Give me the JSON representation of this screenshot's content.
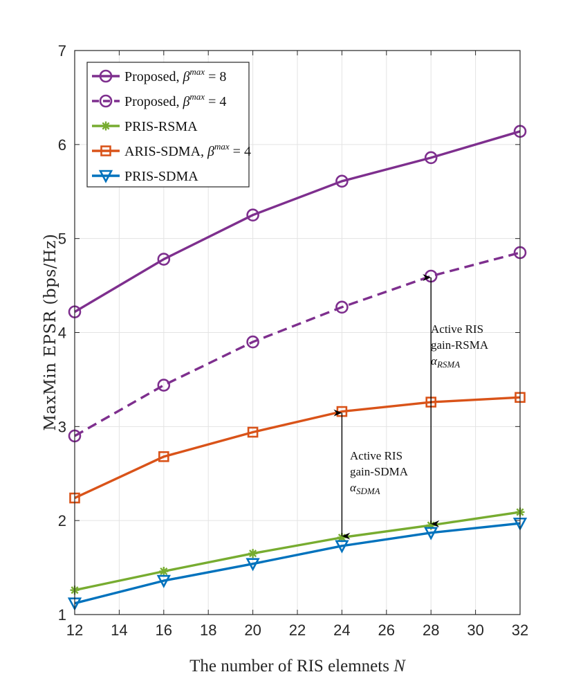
{
  "chart_data": {
    "type": "line",
    "xlabel": "The number of RIS elemnets N",
    "ylabel": "MaxMin EPSR (bps/Hz)",
    "x": [
      12,
      16,
      20,
      24,
      28,
      32
    ],
    "xlim": [
      12,
      32
    ],
    "ylim": [
      1,
      7
    ],
    "xticks": [
      "12",
      "14",
      "16",
      "18",
      "20",
      "22",
      "24",
      "26",
      "28",
      "30",
      "32"
    ],
    "yticks": [
      "1",
      "2",
      "3",
      "4",
      "5",
      "6",
      "7"
    ],
    "grid": true,
    "legend_position": "top-left",
    "series": [
      {
        "name": "Proposed, β^max = 8",
        "color": "#7E2F8E",
        "dash": "solid",
        "marker": "circle",
        "values": [
          4.22,
          4.78,
          5.25,
          5.61,
          5.86,
          6.14
        ]
      },
      {
        "name": "Proposed, β^max = 4",
        "color": "#7E2F8E",
        "dash": "dashed",
        "marker": "circle",
        "values": [
          2.9,
          3.44,
          3.9,
          4.27,
          4.6,
          4.85
        ]
      },
      {
        "name": "PRIS-RSMA",
        "color": "#77AC30",
        "dash": "solid",
        "marker": "asterisk",
        "values": [
          1.26,
          1.46,
          1.65,
          1.82,
          1.95,
          2.09
        ]
      },
      {
        "name": "ARIS-SDMA, β^max = 4",
        "color": "#D95319",
        "dash": "solid",
        "marker": "square",
        "values": [
          2.24,
          2.68,
          2.94,
          3.16,
          3.26,
          3.31
        ]
      },
      {
        "name": "PRIS-SDMA",
        "color": "#0072BD",
        "dash": "solid",
        "marker": "triangle-down",
        "values": [
          1.12,
          1.36,
          1.54,
          1.73,
          1.87,
          1.97
        ]
      }
    ],
    "legend": [
      {
        "label": "Proposed, ",
        "sym": "β",
        "sup": "max",
        "tail": " = 8"
      },
      {
        "label": "Proposed, ",
        "sym": "β",
        "sup": "max",
        "tail": " = 4"
      },
      {
        "label": "PRIS-RSMA",
        "sym": "",
        "sup": "",
        "tail": ""
      },
      {
        "label": "ARIS-SDMA, ",
        "sym": "β",
        "sup": "max",
        "tail": " = 4"
      },
      {
        "label": "PRIS-SDMA",
        "sym": "",
        "sup": "",
        "tail": ""
      }
    ],
    "annotations": [
      {
        "lines": [
          "Active RIS",
          "gain-SDMA"
        ],
        "symbol": "α",
        "subscript": "SDMA",
        "arrow_x": 24,
        "arrow_from": 1.82,
        "arrow_to": 3.16
      },
      {
        "lines": [
          "Active RIS",
          "gain-RSMA"
        ],
        "symbol": "α",
        "subscript": "RSMA",
        "arrow_x": 28,
        "arrow_from": 1.95,
        "arrow_to": 4.6
      }
    ]
  }
}
